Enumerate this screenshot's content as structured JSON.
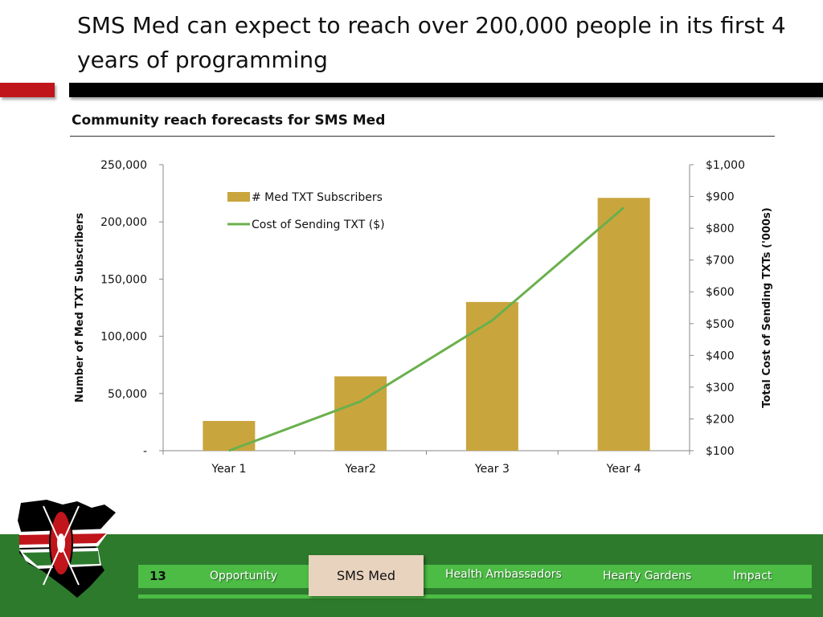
{
  "slide": {
    "title": "SMS Med can expect to reach over 200,000 people in its first 4 years of programming",
    "subtitle": "Community reach forecasts for SMS Med"
  },
  "chart_data": {
    "type": "bar",
    "categories": [
      "Year 1",
      "Year2",
      "Year 3",
      "Year 4"
    ],
    "series": [
      {
        "name": "# Med TXT Subscribers",
        "type": "bar",
        "axis": "left",
        "color": "#c9a53e",
        "values": [
          26000,
          65000,
          130000,
          221000
        ]
      },
      {
        "name": "Cost of Sending TXT ($)",
        "type": "line",
        "axis": "right",
        "color": "#6ab04c",
        "values": [
          100,
          255,
          510,
          865
        ]
      }
    ],
    "ylabel": "Number of Med TXT Subscribers",
    "y2label": "Total Cost of Sending TXTs ('000s)",
    "ylim": [
      0,
      250000
    ],
    "y2lim": [
      100,
      1000
    ],
    "yticks": [
      0,
      50000,
      100000,
      150000,
      200000,
      250000
    ],
    "ytick_labels": [
      "-",
      "50,000",
      "100,000",
      "150,000",
      "200,000",
      "250,000"
    ],
    "y2ticks": [
      100,
      200,
      300,
      400,
      500,
      600,
      700,
      800,
      900,
      1000
    ],
    "y2tick_labels": [
      "$100",
      "$200",
      "$300",
      "$400",
      "$500",
      "$600",
      "$700",
      "$800",
      "$900",
      "$1,000"
    ],
    "legend": "top-left",
    "grid": false
  },
  "footer": {
    "page_number": "13",
    "nav": [
      "Opportunity",
      "SMS Med",
      "Health Ambassadors",
      "Hearty Gardens",
      "Impact"
    ],
    "active": "SMS Med"
  },
  "colors": {
    "accent_red": "#c0151b",
    "footer_green": "#2d7a2d",
    "nav_green": "#4cbc45"
  }
}
